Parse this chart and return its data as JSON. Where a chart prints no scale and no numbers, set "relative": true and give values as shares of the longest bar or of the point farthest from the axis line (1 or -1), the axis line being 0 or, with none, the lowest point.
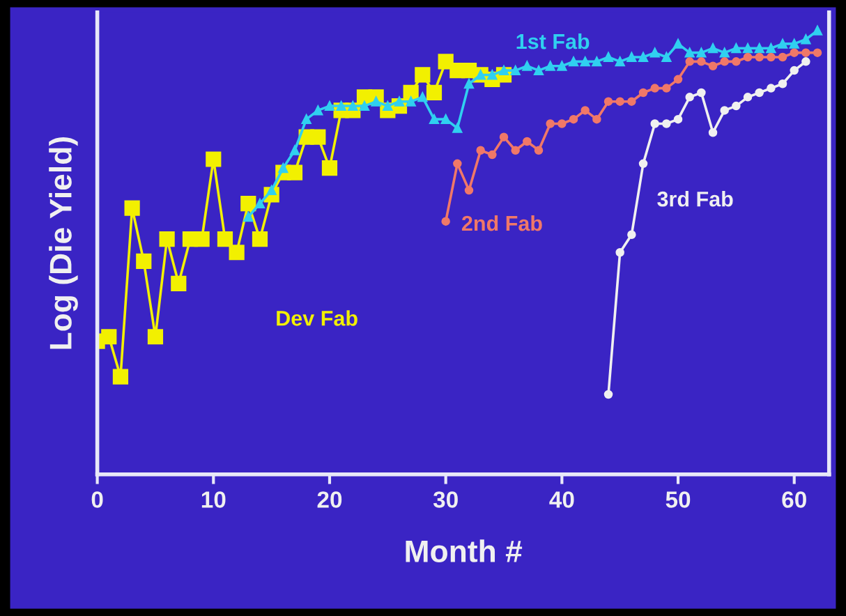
{
  "chart_data": {
    "type": "line",
    "relative": true,
    "xlabel": "Month #",
    "ylabel": "Log (Die Yield)",
    "xlim": [
      0,
      63
    ],
    "xticks": [
      0,
      10,
      20,
      30,
      40,
      50,
      60
    ],
    "grid": false,
    "legend": false,
    "series": [
      {
        "name": "Dev Fab",
        "color": "#f2f000",
        "marker": "square",
        "x": [
          0,
          1,
          2,
          3,
          4,
          5,
          6,
          7,
          8,
          9,
          10,
          11,
          12,
          13,
          14,
          15,
          16,
          17,
          18,
          19,
          20,
          21,
          22,
          23,
          24,
          25,
          26,
          27,
          28,
          29,
          30,
          31,
          32,
          33,
          34,
          35
        ],
        "values": [
          0.3,
          0.31,
          0.22,
          0.6,
          0.48,
          0.31,
          0.53,
          0.43,
          0.53,
          0.53,
          0.71,
          0.53,
          0.5,
          0.61,
          0.53,
          0.63,
          0.68,
          0.68,
          0.76,
          0.76,
          0.69,
          0.82,
          0.82,
          0.85,
          0.85,
          0.82,
          0.83,
          0.86,
          0.9,
          0.86,
          0.93,
          0.91,
          0.91,
          0.9,
          0.89,
          0.9
        ]
      },
      {
        "name": "1st Fab",
        "color": "#30d0f0",
        "marker": "triangle",
        "x": [
          13,
          14,
          15,
          16,
          17,
          18,
          19,
          20,
          21,
          22,
          23,
          24,
          25,
          26,
          27,
          28,
          29,
          30,
          31,
          32,
          33,
          34,
          35,
          36,
          37,
          38,
          39,
          40,
          41,
          42,
          43,
          44,
          45,
          46,
          47,
          48,
          49,
          50,
          51,
          52,
          53,
          54,
          55,
          56,
          57,
          58,
          59,
          60,
          61,
          62
        ],
        "values": [
          0.58,
          0.61,
          0.64,
          0.69,
          0.73,
          0.8,
          0.82,
          0.83,
          0.83,
          0.83,
          0.83,
          0.84,
          0.83,
          0.84,
          0.84,
          0.85,
          0.8,
          0.8,
          0.78,
          0.88,
          0.9,
          0.9,
          0.91,
          0.91,
          0.92,
          0.91,
          0.92,
          0.92,
          0.93,
          0.93,
          0.93,
          0.94,
          0.93,
          0.94,
          0.94,
          0.95,
          0.94,
          0.97,
          0.95,
          0.95,
          0.96,
          0.95,
          0.96,
          0.96,
          0.96,
          0.96,
          0.97,
          0.97,
          0.98,
          1.0
        ]
      },
      {
        "name": "2nd Fab",
        "color": "#f07868",
        "marker": "circle",
        "x": [
          30,
          31,
          32,
          33,
          34,
          35,
          36,
          37,
          38,
          39,
          40,
          41,
          42,
          43,
          44,
          45,
          46,
          47,
          48,
          49,
          50,
          51,
          52,
          53,
          54,
          55,
          56,
          57,
          58,
          59,
          60,
          61,
          62
        ],
        "values": [
          0.57,
          0.7,
          0.64,
          0.73,
          0.72,
          0.76,
          0.73,
          0.75,
          0.73,
          0.79,
          0.79,
          0.8,
          0.82,
          0.8,
          0.84,
          0.84,
          0.84,
          0.86,
          0.87,
          0.87,
          0.89,
          0.93,
          0.93,
          0.92,
          0.93,
          0.93,
          0.94,
          0.94,
          0.94,
          0.94,
          0.95,
          0.95,
          0.95
        ]
      },
      {
        "name": "3rd Fab",
        "color": "#f0f0f0",
        "marker": "circle",
        "x": [
          44,
          45,
          46,
          47,
          48,
          49,
          50,
          51,
          52,
          53,
          54,
          55,
          56,
          57,
          58,
          59,
          60,
          61
        ],
        "values": [
          0.18,
          0.5,
          0.54,
          0.7,
          0.79,
          0.79,
          0.8,
          0.85,
          0.86,
          0.77,
          0.82,
          0.83,
          0.85,
          0.86,
          0.87,
          0.88,
          0.91,
          0.93
        ]
      }
    ]
  }
}
